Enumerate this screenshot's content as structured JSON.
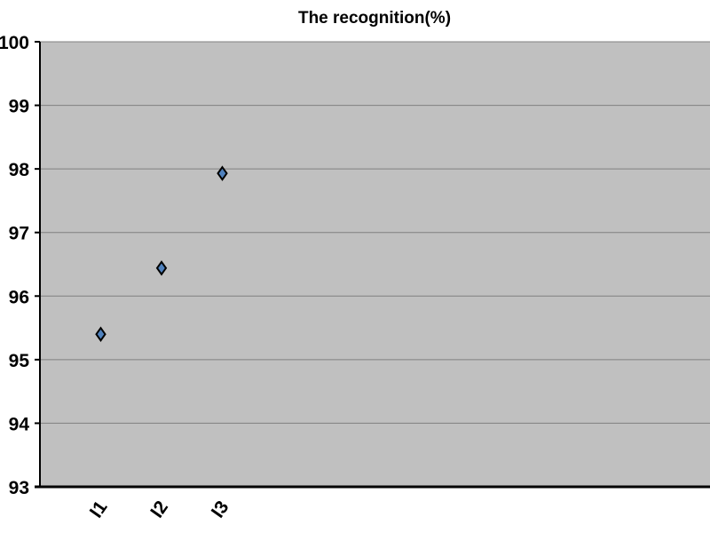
{
  "chart_data": {
    "type": "scatter",
    "title": "The recognition(%)",
    "xlabel": "",
    "ylabel": "",
    "categories": [
      "I1",
      "I2",
      "I3"
    ],
    "values": [
      95.4,
      96.44,
      97.93
    ],
    "ylim": [
      93,
      100
    ],
    "yticks": [
      93,
      94,
      95,
      96,
      97,
      98,
      99,
      100
    ],
    "grid": true,
    "legend": "none",
    "colors": {
      "plot_background": "#c0c0c0",
      "marker_fill": "#4f81bd",
      "marker_edge": "#000000",
      "grid": "#808080"
    }
  }
}
